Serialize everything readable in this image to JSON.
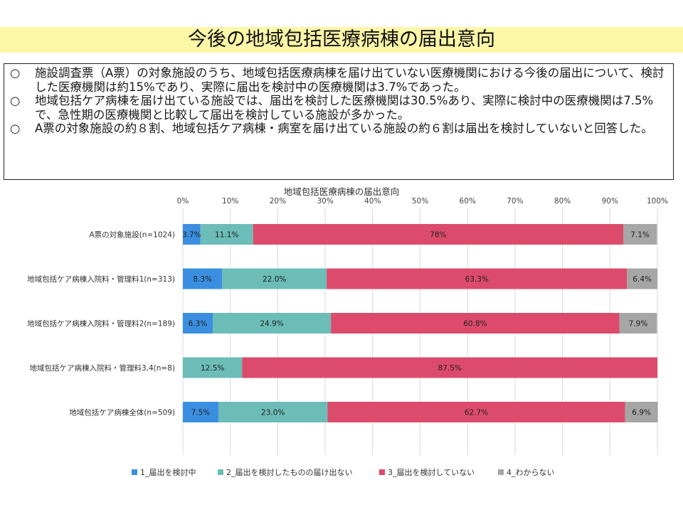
{
  "page": {
    "title": "今後の地域包括医療病棟の届出意向",
    "bullets": [
      "施設調査票（A票）の対象施設のうち、地域包括医療病棟を届け出ていない医療機関における今後の届出について、検討した医療機関は約15%であり、実際に届出を検討中の医療機関は3.7%であった。",
      "地域包括ケア病棟を届け出ている施設では、届出を検討した医療機関は30.5%あり、実際に検討中の医療機関は7.5%で、急性期の医療機関と比較して届出を検討している施設が多かった。",
      "A票の対象施設の約８割、地域包括ケア病棟・病室を届け出ている施設の約６割は届出を検討していないと回答した。"
    ],
    "bullet_mark": "○"
  },
  "chart_data": {
    "type": "bar",
    "orientation": "horizontal",
    "stacked": true,
    "percent_stacked": true,
    "title": "地域包括医療病棟の届出意向",
    "x_ticks": [
      "0%",
      "10%",
      "20%",
      "30%",
      "40%",
      "50%",
      "60%",
      "70%",
      "80%",
      "90%",
      "100%"
    ],
    "xlim": [
      0,
      100
    ],
    "grid": true,
    "legend_position": "bottom",
    "categories": [
      "A票の対象施設(n=1024)",
      "地域包括ケア病棟入院料・管理料1(n=313)",
      "地域包括ケア病棟入院料・管理料2(n=189)",
      "地域包括ケア病棟入院料・管理料3,4(n=8)",
      "地域包括ケア病棟全体(n=509)"
    ],
    "series": [
      {
        "name": "1_届出を検討中",
        "color": "#3b8fe0",
        "values": [
          3.7,
          8.3,
          6.3,
          0,
          7.5
        ],
        "labels": [
          "3.7%",
          "8.3%",
          "6.3%",
          "",
          "7.5%"
        ]
      },
      {
        "name": "2_届出を検討したものの届け出ない",
        "color": "#6cbcb8",
        "values": [
          11.1,
          22.0,
          24.9,
          12.5,
          23.0
        ],
        "labels": [
          "11.1%",
          "22.0%",
          "24.9%",
          "12.5%",
          "23.0%"
        ]
      },
      {
        "name": "3_届出を検討していない",
        "color": "#dc4b6b",
        "values": [
          78,
          63.3,
          60.8,
          87.5,
          62.7
        ],
        "labels": [
          "78%",
          "63.3%",
          "60.8%",
          "87.5%",
          "62.7%"
        ]
      },
      {
        "name": "4_わからない",
        "color": "#a6a6a6",
        "values": [
          7.1,
          6.4,
          7.9,
          0,
          6.9
        ],
        "labels": [
          "7.1%",
          "6.4%",
          "7.9%",
          "",
          "6.9%"
        ]
      }
    ]
  }
}
